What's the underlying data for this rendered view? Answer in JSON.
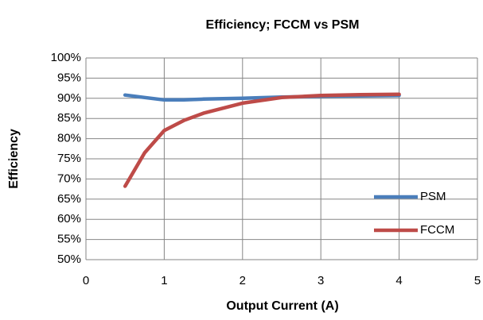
{
  "chart_data": {
    "type": "line",
    "title": "Efficiency; FCCM vs PSM",
    "x_label": "Output Current (A)",
    "y_label": "Efficiency",
    "x": [
      0.5,
      0.75,
      1,
      1.25,
      1.5,
      2,
      2.5,
      3,
      3.5,
      4
    ],
    "series": [
      {
        "name": "PSM",
        "color": "#4a7ebb",
        "values": [
          90.8,
          90.2,
          89.6,
          89.6,
          89.8,
          90.0,
          90.3,
          90.5,
          90.6,
          90.7
        ]
      },
      {
        "name": "FCCM",
        "color": "#be4b48",
        "values": [
          68.2,
          76.5,
          82.0,
          84.5,
          86.3,
          88.8,
          90.2,
          90.7,
          90.9,
          91.0
        ]
      }
    ],
    "xlim": [
      0,
      5
    ],
    "xticks": [
      0,
      1,
      2,
      3,
      4,
      5
    ],
    "ylim": [
      50,
      100
    ],
    "yticks": [
      {
        "value": 50,
        "label": "50%"
      },
      {
        "value": 55,
        "label": "55%"
      },
      {
        "value": 60,
        "label": "60%"
      },
      {
        "value": 65,
        "label": "65%"
      },
      {
        "value": 70,
        "label": "70%"
      },
      {
        "value": 75,
        "label": "75%"
      },
      {
        "value": 80,
        "label": "80%"
      },
      {
        "value": 85,
        "label": "85%"
      },
      {
        "value": 90,
        "label": "90%"
      },
      {
        "value": 95,
        "label": "95%"
      },
      {
        "value": 100,
        "label": "100%"
      }
    ],
    "grid": true,
    "legend": "right"
  }
}
